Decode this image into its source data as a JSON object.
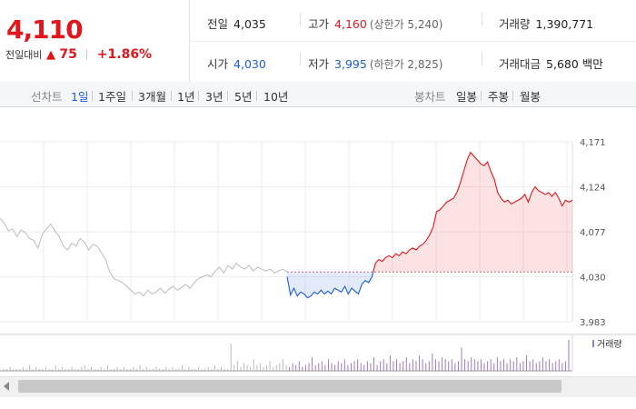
{
  "summary": {
    "price": "4,110",
    "change_label": "전일대비",
    "change_arrow": "▲",
    "change_value": "75",
    "change_percent": "+1.86%",
    "prev_close": {
      "label": "전일",
      "value": "4,035"
    },
    "open": {
      "label": "시가",
      "value": "4,030"
    },
    "high": {
      "label": "고가",
      "value": "4,160",
      "limit": "(상한가 5,240)"
    },
    "low": {
      "label": "저가",
      "value": "3,995",
      "limit": "(하한가 2,825)"
    },
    "volume": {
      "label": "거래량",
      "value": "1,390,771"
    },
    "amount": {
      "label": "거래대금",
      "value": "5,680 백만"
    }
  },
  "toolbar": {
    "line_label": "선차트",
    "line_periods": [
      "1일",
      "1주일",
      "3개월",
      "1년",
      "3년",
      "5년",
      "10년"
    ],
    "active_period": "1일",
    "candle_label": "봉차트",
    "candle_periods": [
      "일봉",
      "주봉",
      "월봉"
    ]
  },
  "colors": {
    "up": "#e0161c",
    "down": "#1c5cd8",
    "prev": "#bbbbbb"
  },
  "chart_data": {
    "type": "line",
    "y_ticks": [
      "4,171",
      "4,124",
      "4,077",
      "4,030",
      "3,983"
    ],
    "ylim": [
      3983,
      4171
    ],
    "reference": 4035,
    "volume_legend": "거래량",
    "prev_day_series": {
      "color": "#bbbbbb",
      "values": [
        4091,
        4086,
        4078,
        4080,
        4072,
        4079,
        4076,
        4070,
        4068,
        4060,
        4074,
        4080,
        4085,
        4078,
        4072,
        4062,
        4058,
        4065,
        4062,
        4070,
        4066,
        4058,
        4064,
        4062,
        4055,
        4048,
        4035,
        4028,
        4026,
        4024,
        4020,
        4016,
        4012,
        4014,
        4010,
        4016,
        4012,
        4014,
        4018,
        4013,
        4017,
        4020,
        4016,
        4019,
        4022,
        4018,
        4024,
        4028,
        4030,
        4032,
        4030,
        4036,
        4040,
        4034,
        4042,
        4038,
        4044,
        4040,
        4038,
        4042,
        4036,
        4040,
        4038,
        4036,
        4038,
        4034,
        4036,
        4038,
        4035
      ]
    },
    "today_series": {
      "values": [
        4030,
        4011,
        4018,
        4010,
        4014,
        4012,
        4008,
        4010,
        4014,
        4012,
        4016,
        4012,
        4015,
        4012,
        4018,
        4016,
        4014,
        4020,
        4012,
        4018,
        4015,
        4012,
        4022,
        4026,
        4024,
        4030,
        4044,
        4048,
        4046,
        4050,
        4052,
        4050,
        4054,
        4052,
        4056,
        4054,
        4058,
        4060,
        4058,
        4062,
        4064,
        4068,
        4074,
        4082,
        4098,
        4100,
        4104,
        4108,
        4110,
        4112,
        4118,
        4128,
        4140,
        4152,
        4160,
        4156,
        4152,
        4148,
        4146,
        4150,
        4140,
        4132,
        4118,
        4112,
        4108,
        4110,
        4106,
        4108,
        4110,
        4112,
        4116,
        4108,
        4118,
        4124,
        4120,
        4118,
        4116,
        4118,
        4114,
        4118,
        4112,
        4104,
        4110,
        4108,
        4110
      ]
    },
    "volume_values": [
      1,
      1,
      2,
      1,
      1,
      1,
      2,
      1,
      3,
      1,
      2,
      1,
      1,
      2,
      1,
      1,
      3,
      1,
      2,
      1,
      1,
      2,
      1,
      1,
      2,
      3,
      1,
      2,
      1,
      1,
      2,
      1,
      3,
      1,
      1,
      2,
      1,
      2,
      1,
      1,
      2,
      1,
      3,
      1,
      2,
      1,
      1,
      2,
      1,
      1,
      2,
      1,
      2,
      1,
      1,
      3,
      1,
      2,
      1,
      1,
      2,
      1,
      1,
      2,
      1,
      3,
      1,
      2,
      1,
      1,
      14,
      3,
      5,
      2,
      4,
      3,
      2,
      6,
      3,
      4,
      2,
      3,
      5,
      2,
      3,
      4,
      6,
      3,
      2,
      4,
      3,
      5,
      2,
      3,
      4,
      7,
      3,
      4,
      5,
      3,
      6,
      4,
      3,
      5,
      4,
      6,
      3,
      4,
      5,
      6,
      4,
      3,
      5,
      4,
      7,
      3,
      5,
      6,
      4,
      8,
      5,
      6,
      4,
      5,
      7,
      4,
      6,
      5,
      8,
      6,
      4,
      5,
      9,
      6,
      5,
      7,
      6,
      5,
      6,
      4,
      5,
      12,
      6,
      5,
      7,
      6,
      5,
      6,
      4,
      5,
      6,
      4,
      7,
      5,
      6,
      4,
      6,
      5,
      7,
      4,
      5,
      8,
      5,
      6,
      4,
      5,
      7,
      5,
      6,
      4,
      5,
      6,
      4,
      5,
      16
    ]
  }
}
